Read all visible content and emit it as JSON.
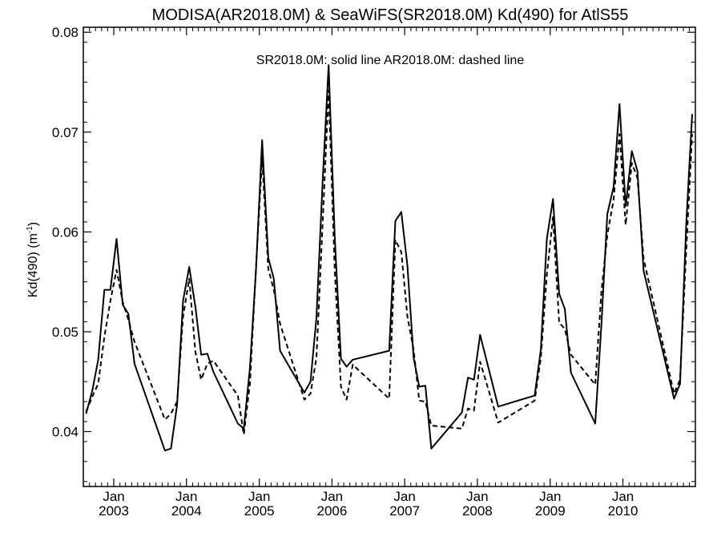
{
  "chart_data": {
    "type": "line",
    "title": "MODISA(AR2018.0M) & SeaWiFS(SR2018.0M)  Kd(490) for AtlS55",
    "annotation": "SR2018.0M: solid line   AR2018.0M: dashed line",
    "ylabel": "Kd(490) (m",
    "ylabel_superscript": "-1",
    "ylabel_close": ")",
    "xlim": [
      "2002-08-01",
      "2010-12-31"
    ],
    "ylim": [
      0.0345,
      0.0805
    ],
    "y_ticks": [
      "0.04",
      "0.05",
      "0.06",
      "0.07",
      "0.08"
    ],
    "x_ticks": [
      {
        "date": "2003-01-01",
        "month": "Jan",
        "year": "2003"
      },
      {
        "date": "2004-01-01",
        "month": "Jan",
        "year": "2004"
      },
      {
        "date": "2005-01-01",
        "month": "Jan",
        "year": "2005"
      },
      {
        "date": "2006-01-01",
        "month": "Jan",
        "year": "2006"
      },
      {
        "date": "2007-01-01",
        "month": "Jan",
        "year": "2007"
      },
      {
        "date": "2008-01-01",
        "month": "Jan",
        "year": "2008"
      },
      {
        "date": "2009-01-01",
        "month": "Jan",
        "year": "2009"
      },
      {
        "date": "2010-01-01",
        "month": "Jan",
        "year": "2010"
      }
    ],
    "grid": false,
    "series": [
      {
        "name": "SR2018.0M",
        "style": "solid",
        "color": "#000000",
        "points": [
          [
            "2002-08-15",
            0.0418
          ],
          [
            "2002-09-15",
            0.0441
          ],
          [
            "2002-10-15",
            0.0472
          ],
          [
            "2002-11-15",
            0.0542
          ],
          [
            "2002-12-15",
            0.0542
          ],
          [
            "2003-01-15",
            0.0593
          ],
          [
            "2003-02-15",
            0.0527
          ],
          [
            "2003-03-15",
            0.0518
          ],
          [
            "2003-04-15",
            0.0468
          ],
          [
            "2003-09-15",
            0.0381
          ],
          [
            "2003-10-15",
            0.0383
          ],
          [
            "2003-11-15",
            0.0427
          ],
          [
            "2003-12-15",
            0.0531
          ],
          [
            "2004-01-15",
            0.0565
          ],
          [
            "2004-02-15",
            0.0525
          ],
          [
            "2004-03-15",
            0.0477
          ],
          [
            "2004-04-15",
            0.0478
          ],
          [
            "2004-05-15",
            0.046
          ],
          [
            "2004-09-15",
            0.0408
          ],
          [
            "2004-10-15",
            0.0403
          ],
          [
            "2004-11-15",
            0.0464
          ],
          [
            "2004-12-15",
            0.0561
          ],
          [
            "2005-01-15",
            0.0692
          ],
          [
            "2005-02-15",
            0.0574
          ],
          [
            "2005-03-15",
            0.0553
          ],
          [
            "2005-04-15",
            0.0481
          ],
          [
            "2005-08-15",
            0.0439
          ],
          [
            "2005-09-15",
            0.045
          ],
          [
            "2005-10-15",
            0.0514
          ],
          [
            "2005-11-15",
            0.065
          ],
          [
            "2005-12-15",
            0.0767
          ],
          [
            "2006-01-15",
            0.0594
          ],
          [
            "2006-02-15",
            0.0473
          ],
          [
            "2006-03-15",
            0.0465
          ],
          [
            "2006-04-15",
            0.0472
          ],
          [
            "2006-10-15",
            0.0481
          ],
          [
            "2006-11-15",
            0.0611
          ],
          [
            "2006-12-15",
            0.062
          ],
          [
            "2007-01-15",
            0.0566
          ],
          [
            "2007-02-15",
            0.0474
          ],
          [
            "2007-03-15",
            0.0445
          ],
          [
            "2007-04-15",
            0.0446
          ],
          [
            "2007-05-15",
            0.0383
          ],
          [
            "2007-10-15",
            0.0419
          ],
          [
            "2007-11-15",
            0.0454
          ],
          [
            "2007-12-15",
            0.0452
          ],
          [
            "2008-01-15",
            0.0497
          ],
          [
            "2008-04-15",
            0.0425
          ],
          [
            "2008-10-15",
            0.0436
          ],
          [
            "2008-11-15",
            0.0482
          ],
          [
            "2008-12-15",
            0.0593
          ],
          [
            "2009-01-15",
            0.0633
          ],
          [
            "2009-02-15",
            0.0538
          ],
          [
            "2009-03-15",
            0.0523
          ],
          [
            "2009-04-15",
            0.0459
          ],
          [
            "2009-08-15",
            0.0408
          ],
          [
            "2009-09-15",
            0.0507
          ],
          [
            "2009-10-15",
            0.0618
          ],
          [
            "2009-11-15",
            0.0645
          ],
          [
            "2009-12-15",
            0.0728
          ],
          [
            "2010-01-15",
            0.0626
          ],
          [
            "2010-02-15",
            0.0681
          ],
          [
            "2010-03-15",
            0.0661
          ],
          [
            "2010-04-15",
            0.0561
          ],
          [
            "2010-09-15",
            0.0433
          ],
          [
            "2010-10-15",
            0.0448
          ],
          [
            "2010-11-15",
            0.0608
          ],
          [
            "2010-12-15",
            0.0718
          ]
        ]
      },
      {
        "name": "AR2018.0M",
        "style": "dashed",
        "color": "#000000",
        "points": [
          [
            "2002-08-15",
            0.042
          ],
          [
            "2002-09-15",
            0.0435
          ],
          [
            "2002-10-15",
            0.0448
          ],
          [
            "2002-11-15",
            0.0495
          ],
          [
            "2002-12-15",
            0.0531
          ],
          [
            "2003-01-15",
            0.0562
          ],
          [
            "2003-02-15",
            0.053
          ],
          [
            "2003-03-15",
            0.0512
          ],
          [
            "2003-04-15",
            0.049
          ],
          [
            "2003-09-15",
            0.0412
          ],
          [
            "2003-10-15",
            0.0418
          ],
          [
            "2003-11-15",
            0.043
          ],
          [
            "2003-12-15",
            0.0515
          ],
          [
            "2004-01-15",
            0.0553
          ],
          [
            "2004-02-15",
            0.048
          ],
          [
            "2004-03-15",
            0.0452
          ],
          [
            "2004-04-15",
            0.0468
          ],
          [
            "2004-05-15",
            0.0471
          ],
          [
            "2004-09-15",
            0.0436
          ],
          [
            "2004-10-15",
            0.0397
          ],
          [
            "2004-11-15",
            0.0448
          ],
          [
            "2004-12-15",
            0.0564
          ],
          [
            "2005-01-15",
            0.0674
          ],
          [
            "2005-02-15",
            0.0563
          ],
          [
            "2005-03-15",
            0.0542
          ],
          [
            "2005-04-15",
            0.0508
          ],
          [
            "2005-08-15",
            0.0432
          ],
          [
            "2005-09-15",
            0.0438
          ],
          [
            "2005-10-15",
            0.0474
          ],
          [
            "2005-11-15",
            0.0608
          ],
          [
            "2005-12-15",
            0.0742
          ],
          [
            "2006-01-15",
            0.0561
          ],
          [
            "2006-02-15",
            0.0445
          ],
          [
            "2006-03-15",
            0.0432
          ],
          [
            "2006-04-15",
            0.0467
          ],
          [
            "2006-10-15",
            0.0433
          ],
          [
            "2006-11-15",
            0.0592
          ],
          [
            "2006-12-15",
            0.058
          ],
          [
            "2007-01-15",
            0.0515
          ],
          [
            "2007-02-15",
            0.0482
          ],
          [
            "2007-03-15",
            0.0431
          ],
          [
            "2007-04-15",
            0.043
          ],
          [
            "2007-05-15",
            0.0406
          ],
          [
            "2007-10-15",
            0.0403
          ],
          [
            "2007-11-15",
            0.0423
          ],
          [
            "2007-12-15",
            0.0421
          ],
          [
            "2008-01-15",
            0.047
          ],
          [
            "2008-04-15",
            0.0409
          ],
          [
            "2008-10-15",
            0.0431
          ],
          [
            "2008-11-15",
            0.0474
          ],
          [
            "2008-12-15",
            0.0557
          ],
          [
            "2009-01-15",
            0.0615
          ],
          [
            "2009-02-15",
            0.0509
          ],
          [
            "2009-03-15",
            0.0503
          ],
          [
            "2009-04-15",
            0.0477
          ],
          [
            "2009-08-15",
            0.0447
          ],
          [
            "2009-09-15",
            0.054
          ],
          [
            "2009-10-15",
            0.0597
          ],
          [
            "2009-11-15",
            0.0632
          ],
          [
            "2009-12-15",
            0.0698
          ],
          [
            "2010-01-15",
            0.0607
          ],
          [
            "2010-02-15",
            0.0669
          ],
          [
            "2010-03-15",
            0.0654
          ],
          [
            "2010-04-15",
            0.0573
          ],
          [
            "2010-09-15",
            0.0438
          ],
          [
            "2010-10-15",
            0.0452
          ],
          [
            "2010-11-15",
            0.0582
          ],
          [
            "2010-12-15",
            0.0698
          ]
        ]
      }
    ]
  }
}
